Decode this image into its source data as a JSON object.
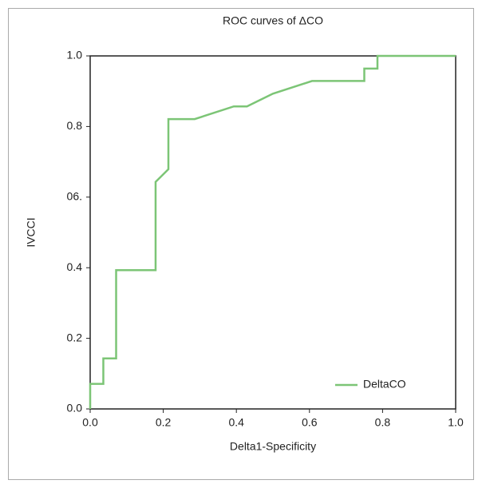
{
  "chart_data": {
    "type": "line",
    "title": "ROC curves of ΔCO",
    "x_label": "Delta1-Specificity",
    "y_label": "IVCCI",
    "xlim": [
      0,
      1
    ],
    "ylim": [
      0,
      1
    ],
    "xticks": [
      {
        "value": 0,
        "label": "0.0"
      },
      0.2,
      0.4,
      0.6,
      0.8,
      {
        "value": 1,
        "label": "1.0"
      }
    ],
    "yticks": [
      {
        "value": 0,
        "label": "0.0"
      },
      0.2,
      0.4,
      {
        "value": 0.6,
        "label": "06."
      },
      0.8,
      {
        "value": 1,
        "label": "1.0"
      }
    ],
    "legend": "lower right",
    "series": [
      {
        "name": "DeltaCO",
        "color": "#7cc576",
        "x": [
          0,
          0,
          0.036,
          0.036,
          0.071,
          0.071,
          0.179,
          0.179,
          0.214,
          0.214,
          0.286,
          0.393,
          0.429,
          0.5,
          0.607,
          0.75,
          0.75,
          0.786,
          0.786,
          1
        ],
        "values": [
          0,
          0.071,
          0.071,
          0.143,
          0.143,
          0.393,
          0.393,
          0.643,
          0.679,
          0.821,
          0.821,
          0.857,
          0.857,
          0.893,
          0.929,
          0.929,
          0.964,
          0.964,
          1,
          1
        ]
      }
    ]
  }
}
